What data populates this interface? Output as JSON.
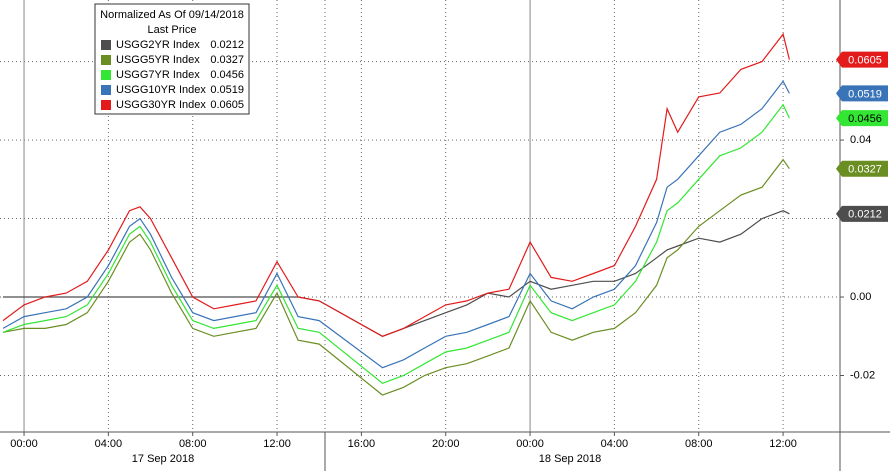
{
  "chart_data": {
    "type": "line",
    "title": "Normalized As Of 09/14/2018",
    "legend_title": "Last Price",
    "x": [
      -1,
      0,
      1,
      2,
      3,
      4,
      5,
      5.5,
      6,
      7,
      8,
      9,
      10,
      11,
      12,
      13,
      14,
      17,
      18,
      19,
      20,
      21,
      22,
      23,
      24,
      25,
      26,
      27,
      28,
      29,
      30,
      30.5,
      31,
      32,
      33,
      34,
      35,
      36,
      36.3
    ],
    "xlim": [
      -1.14,
      38.7
    ],
    "xticks": [
      {
        "value": 0,
        "label": "00:00"
      },
      {
        "value": 4,
        "label": "04:00"
      },
      {
        "value": 8,
        "label": "08:00"
      },
      {
        "value": 12,
        "label": "12:00"
      },
      {
        "value": 16,
        "label": "16:00"
      },
      {
        "value": 20,
        "label": "20:00"
      },
      {
        "value": 24,
        "label": "00:00"
      },
      {
        "value": 28,
        "label": "04:00"
      },
      {
        "value": 32,
        "label": "08:00"
      },
      {
        "value": 36,
        "label": "12:00"
      }
    ],
    "date_labels": [
      "17 Sep 2018",
      "18 Sep 2018"
    ],
    "ylim": [
      -0.0344,
      0.0757
    ],
    "yticks": [
      -0.02,
      {
        "value": 0,
        "label": "0.00"
      },
      0.02,
      0.04,
      0.06
    ],
    "grid": true,
    "series": [
      {
        "name": "USGG2YR Index",
        "color": "#4d4d4d",
        "values": [
          0.0,
          0.0,
          0.0,
          0.0,
          0.0,
          0.0,
          0.0,
          0.0,
          0.0,
          0.0,
          0.0,
          0.0,
          0.0,
          0.0,
          0.0,
          0.0,
          -0.001,
          -0.01,
          -0.008,
          -0.006,
          -0.004,
          -0.002,
          0.001,
          0.0,
          0.004,
          0.002,
          0.003,
          0.004,
          0.004,
          0.006,
          0.01,
          0.012,
          0.013,
          0.015,
          0.014,
          0.016,
          0.02,
          0.022,
          0.0212
        ]
      },
      {
        "name": "USGG5YR Index",
        "color": "#6b8e23",
        "values": [
          -0.009,
          -0.008,
          -0.008,
          -0.007,
          -0.004,
          0.004,
          0.014,
          0.016,
          0.012,
          0.001,
          -0.008,
          -0.01,
          -0.009,
          -0.008,
          0.001,
          -0.011,
          -0.012,
          -0.025,
          -0.023,
          -0.02,
          -0.018,
          -0.017,
          -0.015,
          -0.013,
          -0.001,
          -0.009,
          -0.011,
          -0.009,
          -0.008,
          -0.004,
          0.003,
          0.01,
          0.012,
          0.018,
          0.022,
          0.026,
          0.028,
          0.035,
          0.0327
        ]
      },
      {
        "name": "USGG7YR Index",
        "color": "#33e633",
        "values": [
          -0.009,
          -0.007,
          -0.006,
          -0.005,
          -0.002,
          0.006,
          0.016,
          0.018,
          0.014,
          0.003,
          -0.006,
          -0.008,
          -0.007,
          -0.006,
          0.003,
          -0.008,
          -0.009,
          -0.022,
          -0.02,
          -0.017,
          -0.014,
          -0.013,
          -0.011,
          -0.009,
          0.003,
          -0.004,
          -0.006,
          -0.004,
          -0.002,
          0.004,
          0.014,
          0.022,
          0.024,
          0.03,
          0.036,
          0.038,
          0.042,
          0.049,
          0.0456
        ]
      },
      {
        "name": "USGG10YR Index",
        "color": "#3a74b8",
        "values": [
          -0.008,
          -0.005,
          -0.004,
          -0.003,
          0.0,
          0.008,
          0.018,
          0.02,
          0.016,
          0.005,
          -0.004,
          -0.006,
          -0.005,
          -0.004,
          0.006,
          -0.005,
          -0.006,
          -0.018,
          -0.016,
          -0.013,
          -0.01,
          -0.009,
          -0.007,
          -0.005,
          0.006,
          -0.001,
          -0.003,
          0.0,
          0.002,
          0.008,
          0.019,
          0.028,
          0.03,
          0.036,
          0.042,
          0.044,
          0.048,
          0.055,
          0.0519
        ]
      },
      {
        "name": "USGG30YR Index",
        "color": "#e31b1b",
        "values": [
          -0.006,
          -0.002,
          0.0,
          0.001,
          0.004,
          0.012,
          0.022,
          0.023,
          0.02,
          0.01,
          0.0,
          -0.003,
          -0.002,
          -0.001,
          0.009,
          0.0,
          -0.001,
          -0.01,
          -0.008,
          -0.005,
          -0.002,
          -0.001,
          0.001,
          0.002,
          0.014,
          0.005,
          0.004,
          0.006,
          0.008,
          0.018,
          0.03,
          0.048,
          0.042,
          0.051,
          0.052,
          0.058,
          0.06,
          0.067,
          0.0605
        ]
      }
    ]
  }
}
